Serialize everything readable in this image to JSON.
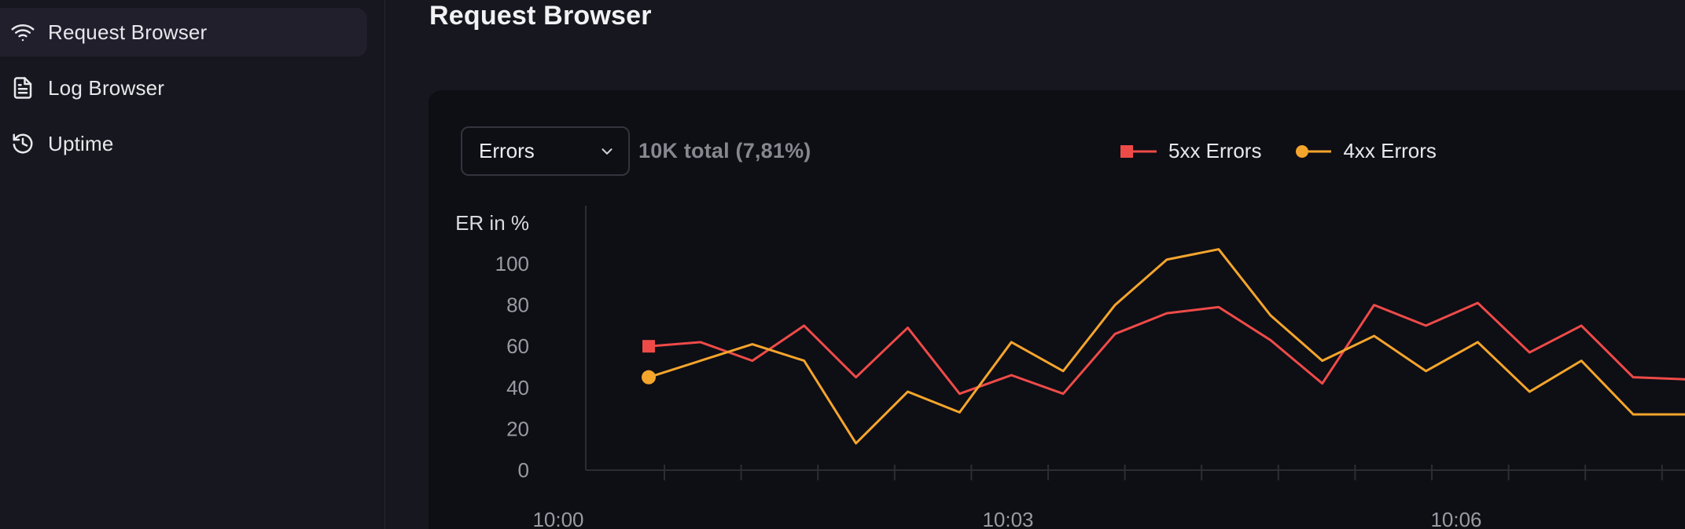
{
  "sidebar": {
    "items": [
      {
        "label": "Request Browser",
        "icon": "wifi-icon",
        "selected": true
      },
      {
        "label": "Log Browser",
        "icon": "file-text-icon",
        "selected": false
      },
      {
        "label": "Uptime",
        "icon": "history-icon",
        "selected": false
      }
    ]
  },
  "header": {
    "title": "Request Browser"
  },
  "panel": {
    "metric_select": {
      "value": "Errors"
    },
    "summary": "10K total (7,81%)",
    "legend": [
      {
        "label": "5xx Errors",
        "color": "#ee4b48",
        "marker": "square"
      },
      {
        "label": "4xx Errors",
        "color": "#f4a52c",
        "marker": "circle"
      }
    ]
  },
  "chart_data": {
    "type": "line",
    "title": "",
    "ylabel": "ER in %",
    "xlabel": "",
    "ylim": [
      0,
      110
    ],
    "yticks": [
      0,
      20,
      40,
      60,
      80,
      100
    ],
    "xticks": [
      "10:00",
      "10:03",
      "10:06"
    ],
    "grid": false,
    "legend_position": "top-right",
    "series": [
      {
        "name": "5xx Errors",
        "color": "#ee4b48",
        "marker": "square",
        "values": [
          60,
          62,
          53,
          70,
          45,
          69,
          37,
          46,
          37,
          66,
          76,
          79,
          63,
          42,
          80,
          70,
          81,
          57,
          70,
          45,
          44
        ]
      },
      {
        "name": "4xx Errors",
        "color": "#f4a52c",
        "marker": "circle",
        "values": [
          45,
          53,
          61,
          53,
          13,
          38,
          28,
          62,
          48,
          80,
          102,
          107,
          75,
          53,
          65,
          48,
          62,
          38,
          53,
          27,
          27
        ]
      }
    ]
  }
}
